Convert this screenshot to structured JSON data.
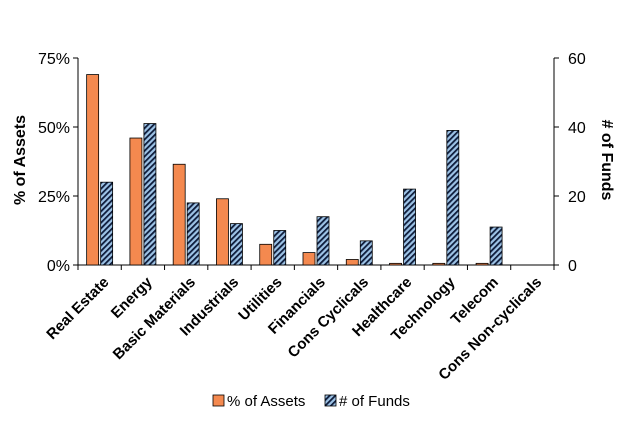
{
  "chart_data": {
    "type": "bar",
    "categories": [
      "Real Estate",
      "Energy",
      "Basic Materials",
      "Industrials",
      "Utilities",
      "Financials",
      "Cons Cyclicals",
      "Healthcare",
      "Technology",
      "Telecom",
      "Cons Non-cyclicals"
    ],
    "series": [
      {
        "name": "% of Assets",
        "axis": "left",
        "values": [
          69,
          46,
          36.5,
          24,
          7.5,
          4.5,
          2,
          0.6,
          0.6,
          0.6,
          0
        ],
        "color": "#F4894F",
        "pattern": "solid"
      },
      {
        "name": "# of Funds",
        "axis": "right",
        "values": [
          24,
          41,
          18,
          12,
          10,
          14,
          7,
          22,
          39,
          11,
          0
        ],
        "color": "#9DC3E6",
        "pattern": "diagonal-stripes"
      }
    ],
    "ylabel": "% of Assets",
    "ylabel_right": "# of Funds",
    "ylim": [
      0,
      75
    ],
    "ylim_right": [
      0,
      60
    ],
    "yticks": [
      "0%",
      "25%",
      "50%",
      "75%"
    ],
    "yticks_right": [
      "0",
      "20",
      "40",
      "60"
    ],
    "grid": false,
    "legend": "bottom"
  }
}
